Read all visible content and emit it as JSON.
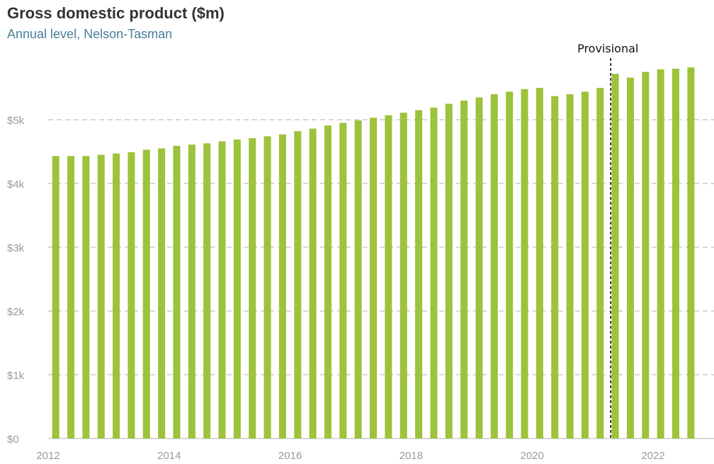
{
  "title": "Gross domestic product ($m)",
  "subtitle": "Annual level, Nelson-Tasman",
  "colors": {
    "bar": "#9dc23b",
    "grid": "#cccccc",
    "marker": "#000000"
  },
  "chart_data": {
    "type": "bar",
    "x_start": 2012.125,
    "x_step": 0.25,
    "values": [
      4430,
      4430,
      4430,
      4450,
      4470,
      4490,
      4530,
      4550,
      4590,
      4610,
      4630,
      4660,
      4690,
      4710,
      4740,
      4770,
      4820,
      4860,
      4910,
      4950,
      4990,
      5030,
      5070,
      5110,
      5150,
      5190,
      5250,
      5300,
      5350,
      5400,
      5440,
      5480,
      5500,
      5370,
      5400,
      5440,
      5500,
      5720,
      5660,
      5750,
      5790,
      5800,
      5820
    ],
    "xlim": [
      2011.9,
      2022.85
    ],
    "ylim": [
      0,
      5800
    ],
    "yticks": [
      0,
      1000,
      2000,
      3000,
      4000,
      5000
    ],
    "ytick_labels": [
      "$0",
      "$1k",
      "$2k",
      "$3k",
      "$4k",
      "$5k"
    ],
    "xticks": [
      2012,
      2014,
      2016,
      2018,
      2020,
      2022
    ],
    "xtick_labels": [
      "2012",
      "2014",
      "2016",
      "2018",
      "2020",
      "2022"
    ],
    "grid": true,
    "annotation": {
      "label": "Provisional",
      "x": 2021.3
    }
  }
}
